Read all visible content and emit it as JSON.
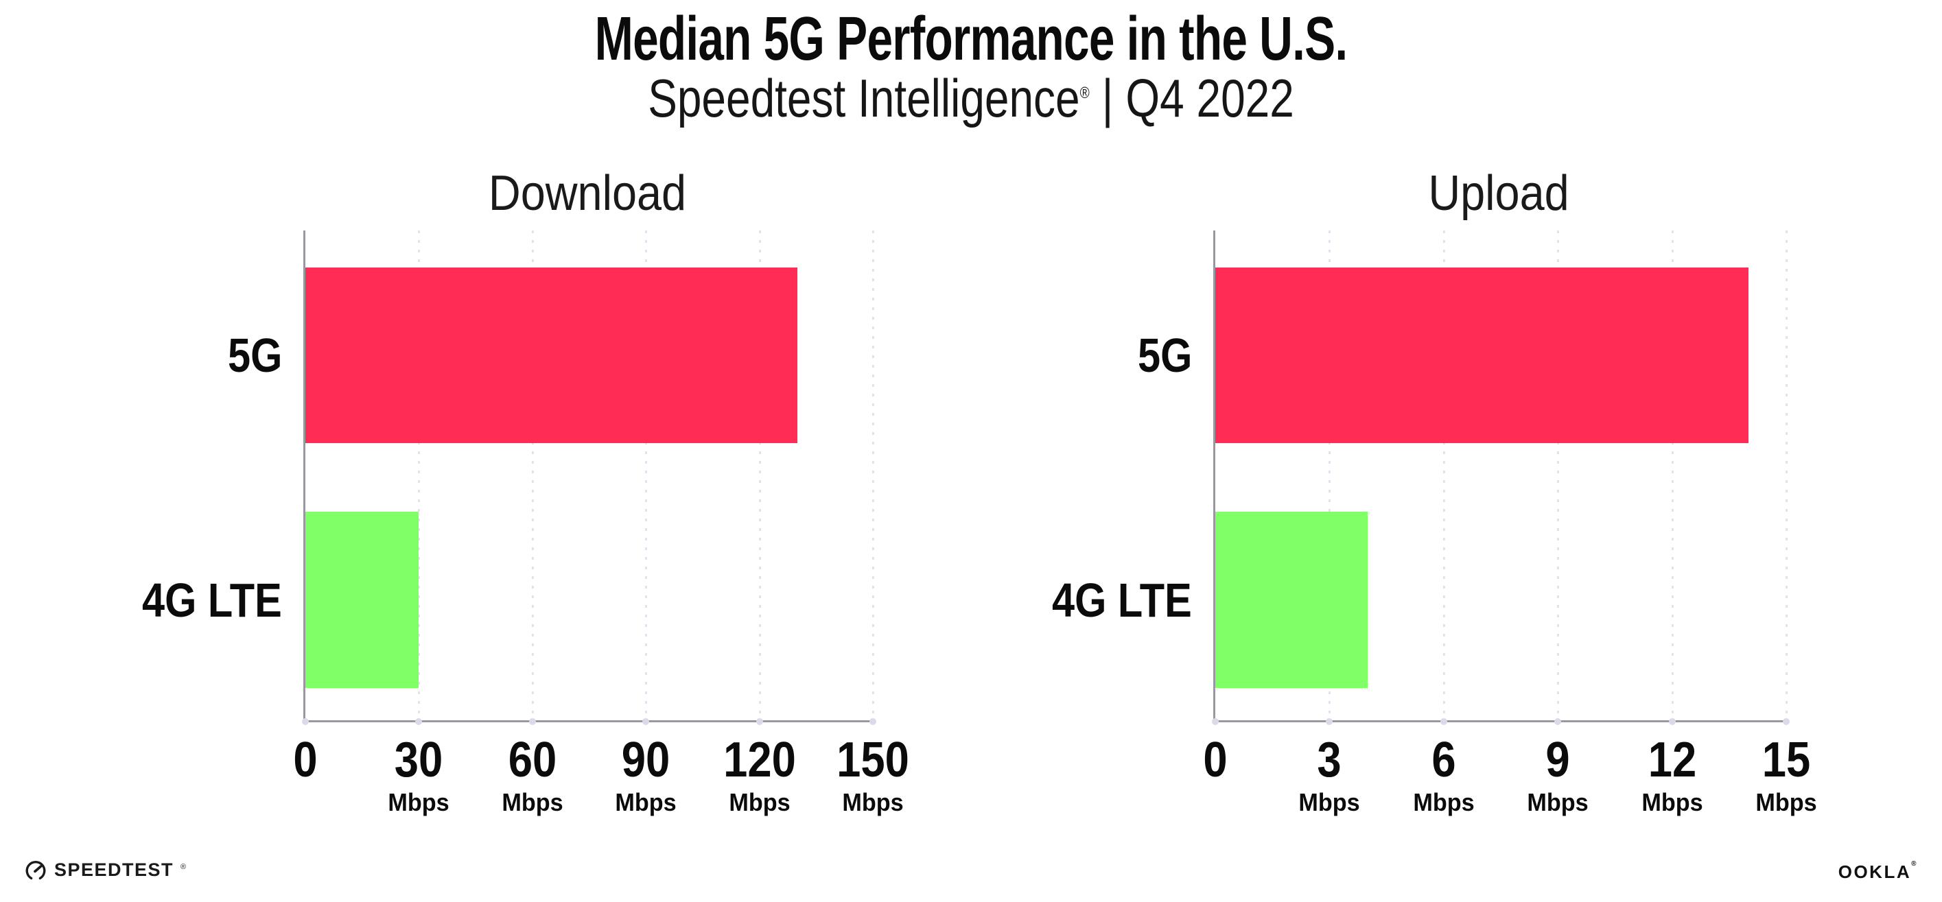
{
  "header": {
    "title": "Median 5G Performance in the U.S.",
    "subtitle_brand": "Speedtest Intelligence",
    "subtitle_reg": "®",
    "subtitle_separator": "|",
    "subtitle_period": "Q4 2022"
  },
  "colors": {
    "bar_5g": "#FF2D56",
    "bar_4g_lte": "#80FF66",
    "axis_line": "#98989E",
    "gridline": "#E2E2EC",
    "axis_tick_dot": "#D9DBE8",
    "text": "#0B0B0B",
    "background": "#FFFFFF"
  },
  "chart_data": [
    {
      "type": "bar",
      "orientation": "horizontal",
      "title": "Download",
      "categories": [
        "5G",
        "4G LTE"
      ],
      "values": [
        130,
        30
      ],
      "unit": "Mbps",
      "xlim": [
        0,
        150
      ],
      "xticks": [
        0,
        30,
        60,
        90,
        120,
        150
      ],
      "bar_colors": [
        "#FF2D56",
        "#80FF66"
      ],
      "grid": "vertical-dotted",
      "legend": "none"
    },
    {
      "type": "bar",
      "orientation": "horizontal",
      "title": "Upload",
      "categories": [
        "5G",
        "4G LTE"
      ],
      "values": [
        14,
        4
      ],
      "unit": "Mbps",
      "xlim": [
        0,
        15
      ],
      "xticks": [
        0,
        3,
        6,
        9,
        12,
        15
      ],
      "bar_colors": [
        "#FF2D56",
        "#80FF66"
      ],
      "grid": "vertical-dotted",
      "legend": "none"
    }
  ],
  "footer": {
    "speedtest_label": "SPEEDTEST",
    "speedtest_reg": "®",
    "ookla_label": "OOKLA",
    "ookla_reg": "®"
  }
}
